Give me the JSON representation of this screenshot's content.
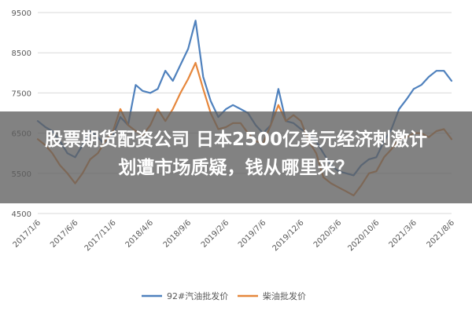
{
  "headline": {
    "line1": "股票期货配资公司 日本2500亿美元经济刺激计",
    "line2": "划遭市场质疑，钱从哪里来？"
  },
  "colors": {
    "series1": "#4f81bd",
    "series2": "#e6873c",
    "grid": "#d9d9d9"
  },
  "chart_data": {
    "type": "line",
    "ylim": [
      4500,
      9500
    ],
    "yticks": [
      4500,
      5500,
      6500,
      7500,
      8500,
      9500
    ],
    "x_range": [
      "2017-01-06",
      "2021-08-06"
    ],
    "xticks": [
      "2017/1/6",
      "2017/6/6",
      "2017/11/6",
      "2018/4/6",
      "2018/9/6",
      "2019/2/6",
      "2019/7/6",
      "2019/12/6",
      "2020/5/6",
      "2020/10/6",
      "2021/3/6",
      "2021/8/6"
    ],
    "legend_position": "bottom",
    "series": [
      {
        "name": "92#汽油批发价",
        "points": [
          [
            "2017-01-06",
            6800
          ],
          [
            "2017-02-06",
            6650
          ],
          [
            "2017-03-06",
            6550
          ],
          [
            "2017-04-06",
            6300
          ],
          [
            "2017-05-06",
            6000
          ],
          [
            "2017-06-06",
            5900
          ],
          [
            "2017-07-06",
            6200
          ],
          [
            "2017-08-06",
            6550
          ],
          [
            "2017-09-06",
            6400
          ],
          [
            "2017-10-06",
            6200
          ],
          [
            "2017-11-06",
            6450
          ],
          [
            "2017-12-06",
            6900
          ],
          [
            "2018-01-06",
            6700
          ],
          [
            "2018-02-06",
            7700
          ],
          [
            "2018-03-06",
            7550
          ],
          [
            "2018-04-06",
            7500
          ],
          [
            "2018-05-06",
            7600
          ],
          [
            "2018-06-06",
            8050
          ],
          [
            "2018-07-06",
            7800
          ],
          [
            "2018-08-06",
            8200
          ],
          [
            "2018-09-06",
            8600
          ],
          [
            "2018-10-06",
            9300
          ],
          [
            "2018-11-06",
            7900
          ],
          [
            "2018-12-06",
            7300
          ],
          [
            "2019-01-06",
            6900
          ],
          [
            "2019-02-06",
            7100
          ],
          [
            "2019-03-06",
            7200
          ],
          [
            "2019-04-06",
            7100
          ],
          [
            "2019-05-06",
            7000
          ],
          [
            "2019-06-06",
            6700
          ],
          [
            "2019-07-06",
            6500
          ],
          [
            "2019-08-06",
            6700
          ],
          [
            "2019-09-06",
            7600
          ],
          [
            "2019-10-06",
            6800
          ],
          [
            "2019-11-06",
            6750
          ],
          [
            "2019-12-06",
            6600
          ],
          [
            "2020-01-06",
            6500
          ],
          [
            "2020-02-06",
            6300
          ],
          [
            "2020-03-06",
            6000
          ],
          [
            "2020-04-06",
            5700
          ],
          [
            "2020-05-06",
            5550
          ],
          [
            "2020-06-06",
            5500
          ],
          [
            "2020-07-06",
            5450
          ],
          [
            "2020-08-06",
            5700
          ],
          [
            "2020-09-06",
            5850
          ],
          [
            "2020-10-06",
            5900
          ],
          [
            "2020-11-06",
            6300
          ],
          [
            "2020-12-06",
            6600
          ],
          [
            "2021-01-06",
            7100
          ],
          [
            "2021-02-06",
            7350
          ],
          [
            "2021-03-06",
            7600
          ],
          [
            "2021-04-06",
            7700
          ],
          [
            "2021-05-06",
            7900
          ],
          [
            "2021-06-06",
            8050
          ],
          [
            "2021-07-06",
            8050
          ],
          [
            "2021-08-06",
            7800
          ]
        ]
      },
      {
        "name": "柴油批发价",
        "points": [
          [
            "2017-01-06",
            6350
          ],
          [
            "2017-02-06",
            6200
          ],
          [
            "2017-03-06",
            6000
          ],
          [
            "2017-04-06",
            5700
          ],
          [
            "2017-05-06",
            5500
          ],
          [
            "2017-06-06",
            5250
          ],
          [
            "2017-07-06",
            5500
          ],
          [
            "2017-08-06",
            5850
          ],
          [
            "2017-09-06",
            6000
          ],
          [
            "2017-10-06",
            6300
          ],
          [
            "2017-11-06",
            6550
          ],
          [
            "2017-12-06",
            7100
          ],
          [
            "2018-01-06",
            6700
          ],
          [
            "2018-02-06",
            6550
          ],
          [
            "2018-03-06",
            6450
          ],
          [
            "2018-04-06",
            6700
          ],
          [
            "2018-05-06",
            7100
          ],
          [
            "2018-06-06",
            6800
          ],
          [
            "2018-07-06",
            7100
          ],
          [
            "2018-08-06",
            7500
          ],
          [
            "2018-09-06",
            7850
          ],
          [
            "2018-10-06",
            8250
          ],
          [
            "2018-11-06",
            7600
          ],
          [
            "2018-12-06",
            7000
          ],
          [
            "2019-01-06",
            6600
          ],
          [
            "2019-02-06",
            6650
          ],
          [
            "2019-03-06",
            6750
          ],
          [
            "2019-04-06",
            6750
          ],
          [
            "2019-05-06",
            6500
          ],
          [
            "2019-06-06",
            6300
          ],
          [
            "2019-07-06",
            6250
          ],
          [
            "2019-08-06",
            6700
          ],
          [
            "2019-09-06",
            7200
          ],
          [
            "2019-10-06",
            6800
          ],
          [
            "2019-11-06",
            6950
          ],
          [
            "2019-12-06",
            6800
          ],
          [
            "2020-01-06",
            6300
          ],
          [
            "2020-02-06",
            6000
          ],
          [
            "2020-03-06",
            5400
          ],
          [
            "2020-04-06",
            5250
          ],
          [
            "2020-05-06",
            5150
          ],
          [
            "2020-06-06",
            5050
          ],
          [
            "2020-07-06",
            4950
          ],
          [
            "2020-08-06",
            5200
          ],
          [
            "2020-09-06",
            5500
          ],
          [
            "2020-10-06",
            5550
          ],
          [
            "2020-11-06",
            5900
          ],
          [
            "2020-12-06",
            6100
          ],
          [
            "2021-01-06",
            6350
          ],
          [
            "2021-02-06",
            6400
          ],
          [
            "2021-03-06",
            6500
          ],
          [
            "2021-04-06",
            6500
          ],
          [
            "2021-05-06",
            6400
          ],
          [
            "2021-06-06",
            6550
          ],
          [
            "2021-07-06",
            6600
          ],
          [
            "2021-08-06",
            6350
          ]
        ]
      }
    ]
  }
}
